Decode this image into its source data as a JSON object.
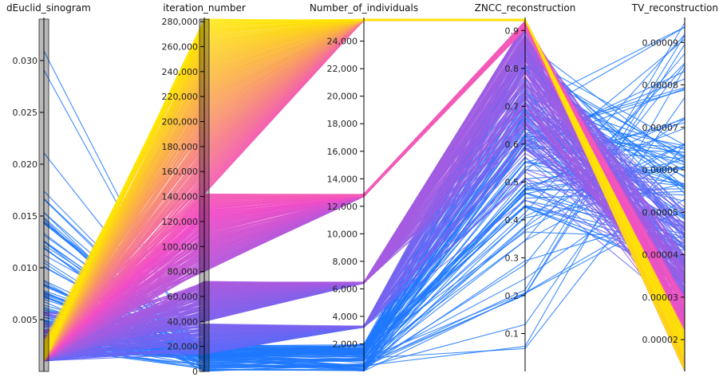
{
  "chart_data": {
    "type": "parallel_coordinates",
    "colormap": {
      "low": "#4a6cff",
      "mid": "#f24ec7",
      "high": "#ffe600",
      "blue": "#1f78ff"
    },
    "axes": [
      {
        "key": "dEuclid_sinogram",
        "title": "dEuclid_sinogram",
        "min": 0.0,
        "max": 0.034,
        "ticks": [
          0.005,
          0.01,
          0.015,
          0.02,
          0.025,
          0.03
        ],
        "tick_labels": [
          "0.005",
          "0.010",
          "0.015",
          "0.020",
          "0.025",
          "0.030"
        ],
        "brush": [
          0.0,
          0.034
        ]
      },
      {
        "key": "iteration_number",
        "title": "iteration_number",
        "min": 0,
        "max": 282000,
        "ticks": [
          0,
          20000,
          40000,
          60000,
          80000,
          100000,
          120000,
          140000,
          160000,
          180000,
          200000,
          220000,
          240000,
          260000,
          280000
        ],
        "tick_labels": [
          "0",
          "20,000",
          "40,000",
          "60,000",
          "80,000",
          "100,000",
          "120,000",
          "140,000",
          "160,000",
          "180,000",
          "200,000",
          "220,000",
          "240,000",
          "260,000",
          "280,000"
        ],
        "brush": [
          0,
          282000
        ]
      },
      {
        "key": "Number_of_individuals",
        "title": "Number_of_individuals",
        "min": 0,
        "max": 25600,
        "ticks": [
          2000,
          4000,
          6000,
          8000,
          10000,
          12000,
          14000,
          16000,
          18000,
          20000,
          22000,
          24000
        ],
        "tick_labels": [
          "2,000",
          "4,000",
          "6,000",
          "8,000",
          "10,000",
          "12,000",
          "14,000",
          "16,000",
          "18,000",
          "20,000",
          "22,000",
          "24,000"
        ]
      },
      {
        "key": "ZNCC_reconstruction",
        "title": "ZNCC_reconstruction",
        "min": 0.0,
        "max": 0.93,
        "ticks": [
          0.1,
          0.2,
          0.3,
          0.4,
          0.5,
          0.6,
          0.7,
          0.8,
          0.9
        ],
        "tick_labels": [
          "0.1",
          "0.2",
          "0.3",
          "0.4",
          "0.5",
          "0.6",
          "0.7",
          "0.8",
          "0.9"
        ]
      },
      {
        "key": "TV_reconstruction",
        "title": "TV_reconstruction",
        "min": 1.25e-05,
        "max": 9.55e-05,
        "ticks": [
          2e-05,
          3e-05,
          4e-05,
          5e-05,
          6e-05,
          7e-05,
          8e-05,
          9e-05
        ],
        "tick_labels": [
          "0.00002",
          "0.00003",
          "0.00004",
          "0.00005",
          "0.00006",
          "0.00007",
          "0.00008",
          "0.00009"
        ]
      }
    ],
    "group_sizes": [
      1,
      5,
      10,
      20,
      40,
      80,
      160,
      320
    ],
    "groups": [
      {
        "n": 40,
        "iter": [
          0,
          15000
        ],
        "count": [
          0,
          1000
        ],
        "zncc": [
          0.0,
          0.72
        ],
        "tv": [
          5e-05,
          9.5e-05
        ],
        "deuc": [
          0.002,
          0.034
        ],
        "color": "#1f78ff"
      },
      {
        "n": 60,
        "iter": [
          10000,
          22000
        ],
        "count": [
          1000,
          2000
        ],
        "zncc": [
          0.25,
          0.88
        ],
        "tv": [
          3e-05,
          6.6e-05
        ],
        "deuc": [
          0.002,
          0.018
        ],
        "color": "#1f78ff"
      },
      {
        "n": 80,
        "iter": [
          14000,
          38000
        ],
        "count": [
          3200,
          3300
        ],
        "zncc": [
          0.45,
          0.9
        ],
        "tv": [
          2.6e-05,
          5.2e-05
        ],
        "deuc": [
          0.001,
          0.006
        ],
        "color": "#8f6bff"
      },
      {
        "n": 120,
        "iter": [
          40000,
          72000
        ],
        "count": [
          6400,
          6500
        ],
        "zncc": [
          0.6,
          0.92
        ],
        "tv": [
          2.1e-05,
          4e-05
        ],
        "deuc": [
          0.001,
          0.004
        ],
        "color": "#c45ef2"
      },
      {
        "n": 160,
        "iter": [
          80000,
          142000
        ],
        "count": [
          12700,
          12900
        ],
        "zncc": [
          0.9,
          0.925
        ],
        "tv": [
          1.6e-05,
          3e-05
        ],
        "deuc": [
          0.001,
          0.003
        ],
        "color": "#f05bb8"
      },
      {
        "n": 220,
        "iter": [
          142000,
          282000
        ],
        "count": [
          25500,
          25600
        ],
        "zncc": [
          0.925,
          0.93
        ],
        "tv": [
          1.25e-05,
          2.2e-05
        ],
        "deuc": [
          0.001,
          0.003
        ],
        "color": "#ffd400"
      }
    ]
  }
}
